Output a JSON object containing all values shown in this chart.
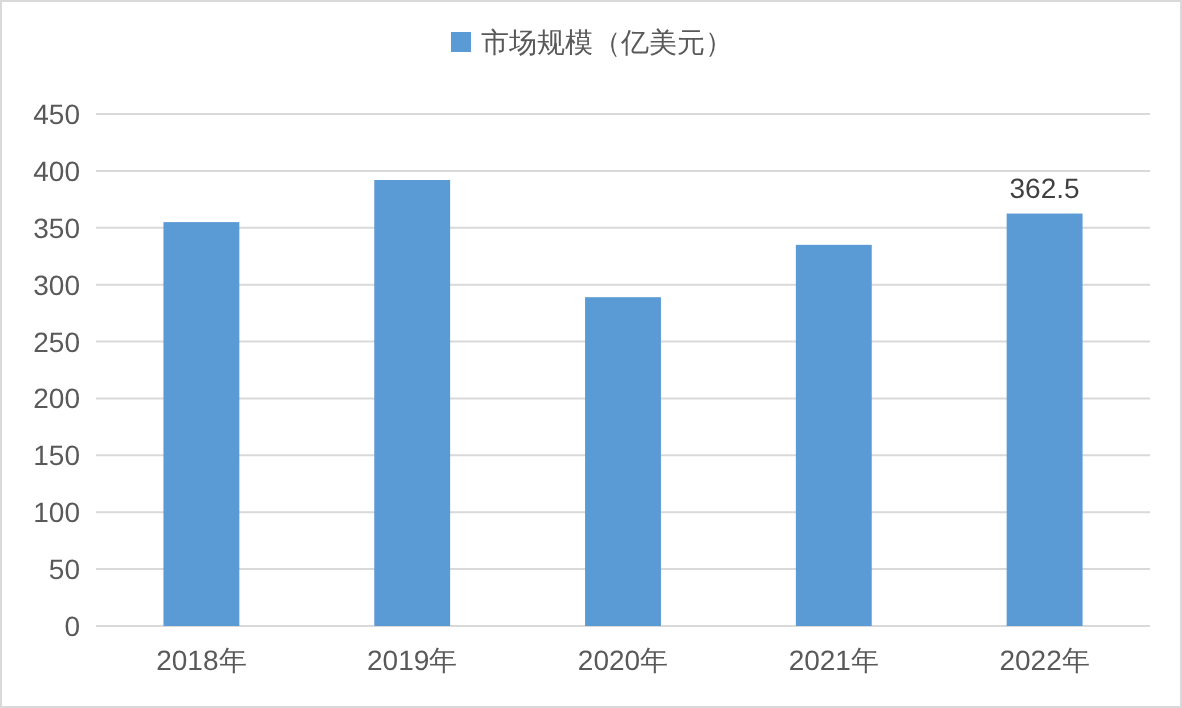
{
  "chart_data": {
    "type": "bar",
    "categories": [
      "2018年",
      "2019年",
      "2020年",
      "2021年",
      "2022年"
    ],
    "series": [
      {
        "name": "市场规模（亿美元）",
        "color": "#5b9bd5",
        "values": [
          355,
          392,
          289,
          335,
          362.5
        ],
        "value_labels": [
          null,
          null,
          null,
          null,
          "362.5"
        ]
      }
    ],
    "ylim": [
      0,
      450
    ],
    "yticks": [
      0,
      50,
      100,
      150,
      200,
      250,
      300,
      350,
      400,
      450
    ],
    "grid": "y",
    "legend": "top"
  }
}
